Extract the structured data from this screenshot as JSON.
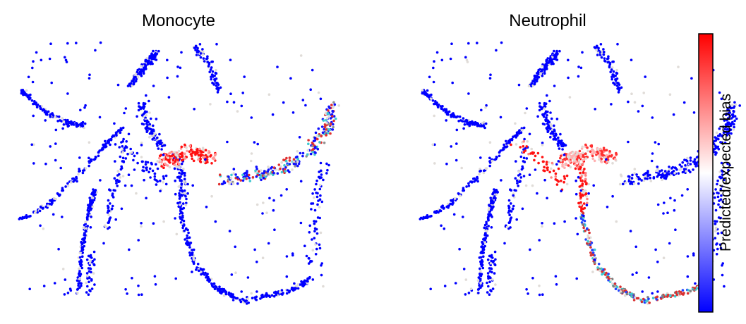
{
  "chart_data": {
    "type": "scatter",
    "panels": [
      {
        "title": "Monocyte",
        "highlight_regions": [
          "center-left cluster (red)",
          "right fan (mixed red/blue/cyan)"
        ]
      },
      {
        "title": "Neutrophil",
        "highlight_regions": [
          "vertical center trunk (red)",
          "lower arc (mixed red/cyan)"
        ]
      }
    ],
    "colorbar": {
      "label": "Predicted/expected bias",
      "colormap": "bwr",
      "low_color": "#0000ff",
      "mid_color": "#ffffff",
      "high_color": "#ff0000",
      "ticks_shown": false
    },
    "background_point_color": "#e0dcd8",
    "axes_shown": false
  }
}
